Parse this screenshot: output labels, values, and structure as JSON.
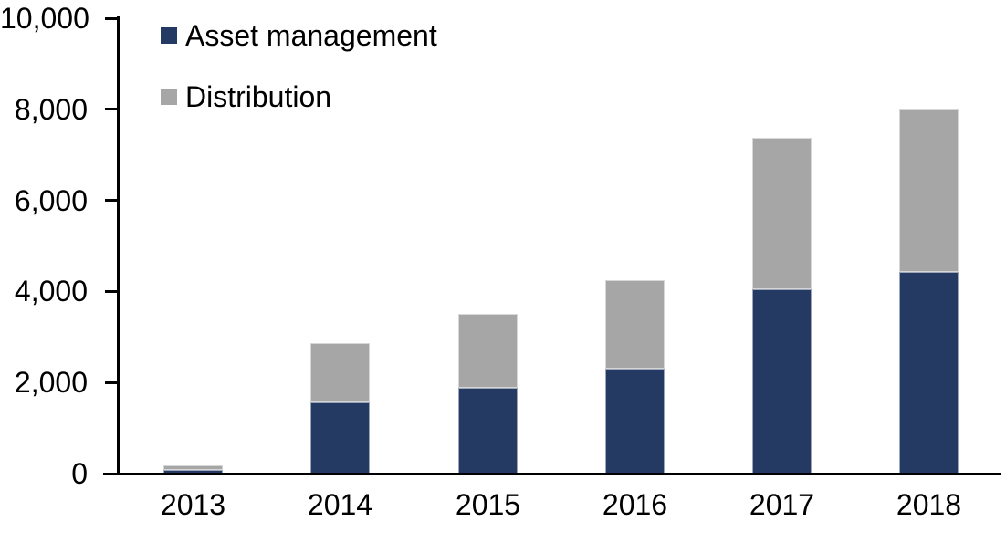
{
  "chart_data": {
    "type": "bar",
    "stacked": true,
    "title": "",
    "xlabel": "",
    "ylabel": "",
    "categories": [
      "2013",
      "2014",
      "2015",
      "2016",
      "2017",
      "2018"
    ],
    "series": [
      {
        "name": "Asset management",
        "color": "#243A63",
        "values": [
          90,
          1560,
          1890,
          2300,
          4040,
          4420
        ]
      },
      {
        "name": "Distribution",
        "color": "#A6A6A6",
        "values": [
          100,
          1300,
          1610,
          1940,
          3340,
          3580
        ]
      }
    ],
    "stack_totals": [
      190,
      2860,
      3500,
      4240,
      7380,
      8000
    ],
    "ylim": [
      0,
      10000
    ],
    "ytick_step": 2000,
    "ytick_labels": [
      "0",
      "2,000",
      "4,000",
      "6,000",
      "8,000",
      "10,000"
    ],
    "grid": false,
    "legend_position": "top-left-inside",
    "axis_color": "#000000",
    "text_color": "#000000"
  }
}
